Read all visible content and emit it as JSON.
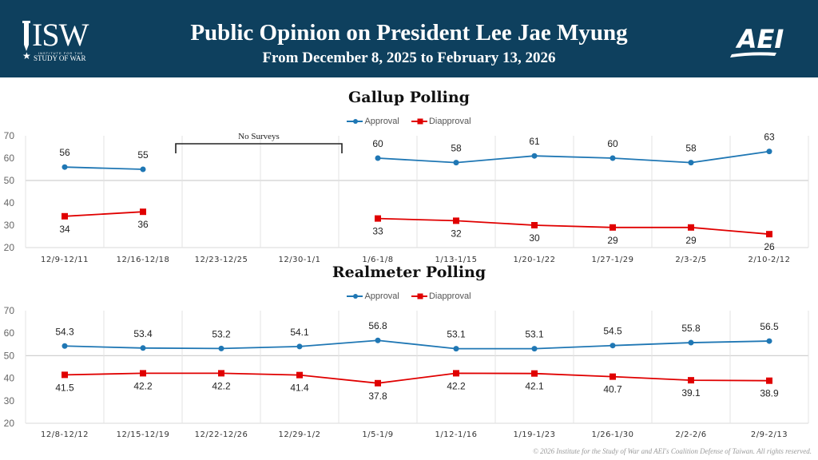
{
  "header": {
    "title": "Public Opinion on President Lee Jae Myung",
    "subtitle": "From December 8, 2025 to February 13, 2026",
    "left_logo": {
      "letters": "ISW",
      "line1": "INSTITUTE FOR THE",
      "line2": "STUDY OF WAR",
      "icon": "star-icon"
    },
    "right_logo": {
      "text": "AEI"
    },
    "background_color": "#0e405e"
  },
  "footer": {
    "copyright": "© 2026 Institute for the Study of War and AEI's Coalition Defense of Taiwan. All rights reserved."
  },
  "colors": {
    "approval": "#1f77b4",
    "disapproval": "#e00000",
    "grid": "#d9d9d9"
  },
  "chart_data": [
    {
      "type": "line",
      "title": "Gallup Polling",
      "xlabel": "",
      "ylabel": "",
      "ylim": [
        20,
        70
      ],
      "yticks": [
        20,
        30,
        40,
        50,
        60,
        70
      ],
      "grid": true,
      "legend": "top-center",
      "categories": [
        "12/9-12/11",
        "12/16-12/18",
        "12/23-12/25",
        "12/30-1/1",
        "1/6-1/8",
        "1/13-1/15",
        "1/20-1/22",
        "1/27-1/29",
        "2/3-2/5",
        "2/10-2/12"
      ],
      "series": [
        {
          "name": "Approval",
          "values": [
            56,
            55,
            null,
            null,
            60,
            58,
            61,
            60,
            58,
            63
          ]
        },
        {
          "name": "Diapproval",
          "values": [
            34,
            36,
            null,
            null,
            33,
            32,
            30,
            29,
            29,
            26
          ]
        }
      ],
      "annotations": [
        {
          "text": "No Surveys",
          "span": [
            "12/23-12/25",
            "12/30-1/1"
          ]
        }
      ]
    },
    {
      "type": "line",
      "title": "Realmeter Polling",
      "xlabel": "",
      "ylabel": "",
      "ylim": [
        20,
        70
      ],
      "yticks": [
        20,
        30,
        40,
        50,
        60,
        70
      ],
      "grid": true,
      "legend": "top-center",
      "categories": [
        "12/8-12/12",
        "12/15-12/19",
        "12/22-12/26",
        "12/29-1/2",
        "1/5-1/9",
        "1/12-1/16",
        "1/19-1/23",
        "1/26-1/30",
        "2/2-2/6",
        "2/9-2/13"
      ],
      "series": [
        {
          "name": "Approval",
          "values": [
            54.3,
            53.4,
            53.2,
            54.1,
            56.8,
            53.1,
            53.1,
            54.5,
            55.8,
            56.5
          ]
        },
        {
          "name": "Diapproval",
          "values": [
            41.5,
            42.2,
            42.2,
            41.4,
            37.8,
            42.2,
            42.1,
            40.7,
            39.1,
            38.9
          ]
        }
      ]
    }
  ]
}
